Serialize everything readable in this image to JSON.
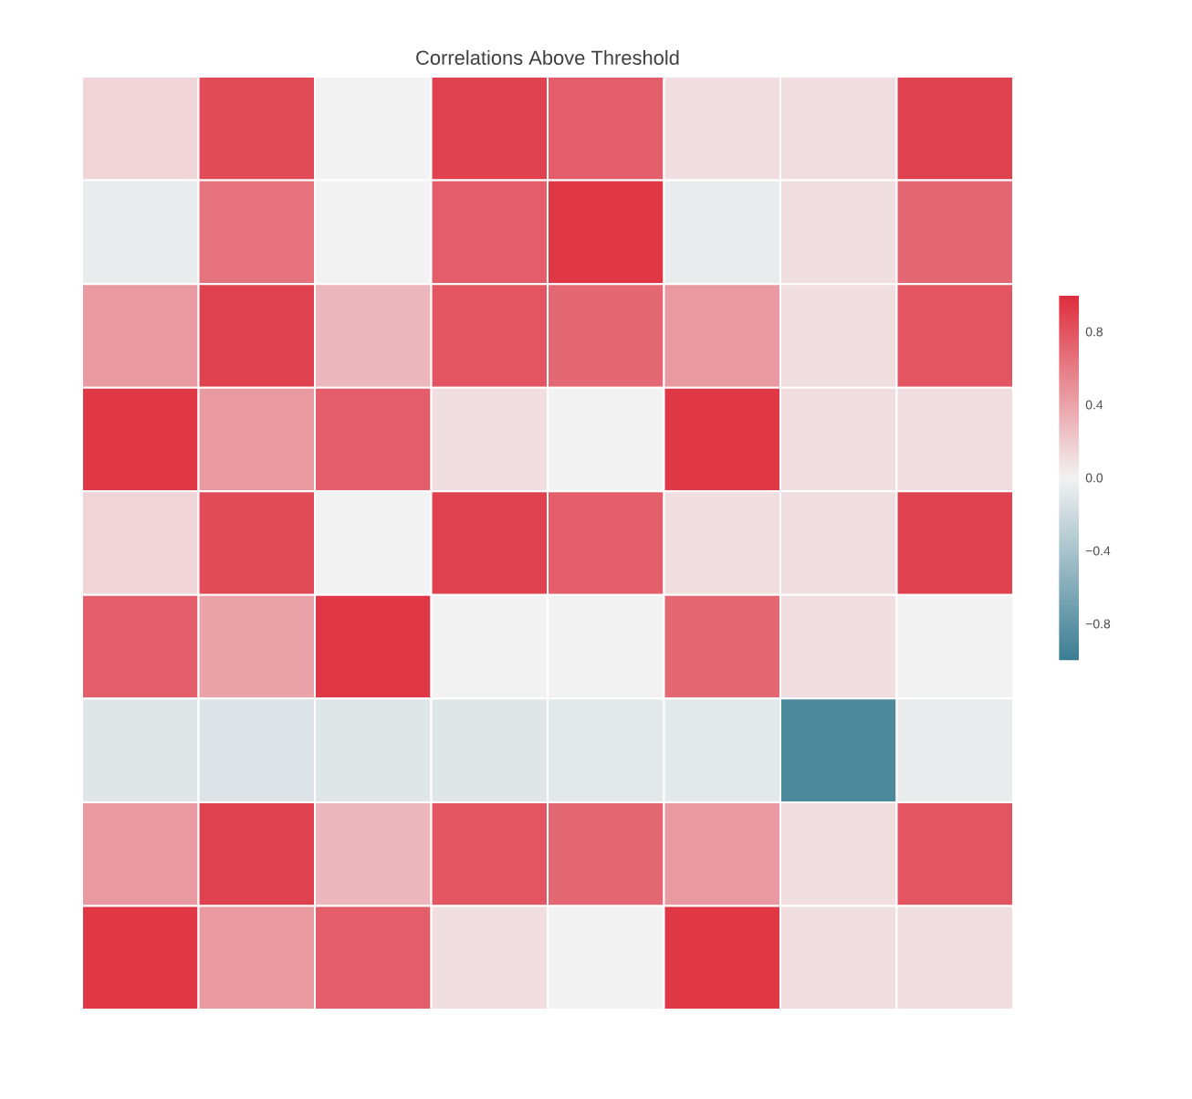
{
  "chart_data": {
    "type": "heatmap",
    "title": "Correlations Above Threshold",
    "categories": [
      null,
      null,
      null,
      null,
      null,
      null,
      null,
      null
    ],
    "y_categories": [
      null,
      null,
      null,
      null,
      null,
      null,
      null,
      null,
      null
    ],
    "cells": [
      [
        0.15,
        0.85,
        0.0,
        0.9,
        0.75,
        0.1,
        0.1,
        0.9
      ],
      [
        -0.05,
        0.65,
        0.0,
        0.75,
        0.95,
        -0.05,
        0.1,
        0.7
      ],
      [
        0.45,
        0.9,
        0.3,
        0.8,
        0.7,
        0.45,
        0.1,
        0.8
      ],
      [
        0.95,
        0.45,
        0.75,
        0.1,
        0.0,
        0.95,
        0.1,
        0.1
      ],
      [
        0.15,
        0.85,
        0.0,
        0.9,
        0.75,
        0.1,
        0.1,
        0.9
      ],
      [
        0.75,
        0.4,
        0.95,
        0.0,
        0.0,
        0.7,
        0.1,
        0.0
      ],
      [
        -0.1,
        -0.12,
        -0.1,
        -0.1,
        -0.08,
        -0.08,
        -0.9,
        -0.05
      ],
      [
        0.45,
        0.9,
        0.3,
        0.8,
        0.7,
        0.45,
        0.1,
        0.8
      ],
      [
        0.95,
        0.45,
        0.75,
        0.1,
        0.0,
        0.95,
        0.1,
        0.1
      ]
    ],
    "clim": [
      -1,
      1
    ],
    "cticks": [
      0.8,
      0.4,
      {
        "value": 0,
        "label": "0.0"
      },
      {
        "value": -0.4,
        "label": "−0.4"
      },
      {
        "value": -0.8,
        "label": "−0.8"
      }
    ]
  }
}
